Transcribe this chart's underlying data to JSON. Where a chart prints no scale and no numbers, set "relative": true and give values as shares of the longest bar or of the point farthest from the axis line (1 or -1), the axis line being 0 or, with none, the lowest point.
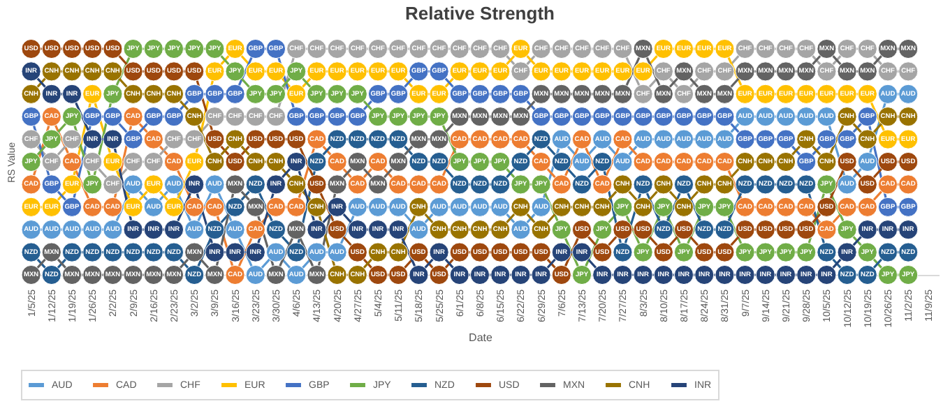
{
  "chart_data": {
    "type": "line",
    "title": "Relative Strength",
    "xlabel": "Date",
    "ylabel": "RS Value",
    "relative": true,
    "marker": "circle",
    "legend": "bottom",
    "grid": false,
    "categories": [
      "1/5/25",
      "1/12/25",
      "1/19/25",
      "1/26/25",
      "2/2/25",
      "2/9/25",
      "2/16/25",
      "2/23/25",
      "3/2/25",
      "3/9/25",
      "3/16/25",
      "3/23/25",
      "3/30/25",
      "4/6/25",
      "4/13/25",
      "4/20/25",
      "4/27/25",
      "5/4/25",
      "5/11/25",
      "5/18/25",
      "5/25/25",
      "6/1/25",
      "6/8/25",
      "6/15/25",
      "6/22/25",
      "6/29/25",
      "7/6/25",
      "7/13/25",
      "7/20/25",
      "7/27/25",
      "8/3/25",
      "8/10/25",
      "8/17/25",
      "8/24/25",
      "8/31/25",
      "9/7/25",
      "9/14/25",
      "9/21/25",
      "9/28/25",
      "10/5/25",
      "10/12/25",
      "10/19/25",
      "10/26/25",
      "11/2/25",
      "11/9/25"
    ],
    "series": [
      {
        "name": "AUD",
        "color": "#5b9bd5",
        "values": [
          0.2,
          0.2,
          0.2,
          0.2,
          0.2,
          0.4,
          0.3,
          0.4,
          0.2,
          0.4,
          0.2,
          0,
          0.1,
          0,
          0.1,
          0.1,
          0.3,
          0.3,
          0.3,
          0.2,
          0.3,
          0.3,
          0.3,
          0.3,
          0.2,
          0.3,
          0.6,
          0.5,
          0.6,
          0.5,
          0.6,
          0.6,
          0.6,
          0.6,
          0.6,
          0.7,
          0.7,
          0.7,
          0.7,
          0.7,
          0.4,
          0.5,
          0.8,
          0.8,
          null
        ]
      },
      {
        "name": "CAD",
        "color": "#ed7d31",
        "values": [
          0.4,
          0.7,
          0.5,
          0.3,
          0.3,
          0.7,
          0.6,
          0.5,
          0.3,
          0.3,
          0,
          0.2,
          0.3,
          0.3,
          0.6,
          0.5,
          0.4,
          0.5,
          0.4,
          0.4,
          0.4,
          0.6,
          0.6,
          0.6,
          0.6,
          0.5,
          0.4,
          0.6,
          0.4,
          0.6,
          0.5,
          0.5,
          0.5,
          0.5,
          0.5,
          0.3,
          0.3,
          0.3,
          0.3,
          0.2,
          0.3,
          0.3,
          0.4,
          0.4,
          null
        ]
      },
      {
        "name": "CHF",
        "color": "#a5a5a5",
        "values": [
          0.6,
          0.5,
          0.6,
          0.5,
          0.4,
          0.5,
          0.5,
          0.6,
          0.6,
          0.7,
          0.7,
          0.7,
          0.7,
          1,
          1,
          1,
          1,
          1,
          1,
          1,
          1,
          1,
          1,
          1,
          0.9,
          1,
          1,
          1,
          1,
          1,
          0.8,
          0.9,
          0.8,
          0.9,
          0.9,
          1,
          1,
          1,
          1,
          0.9,
          1,
          1,
          0.9,
          0.9,
          null
        ]
      },
      {
        "name": "EUR",
        "color": "#ffc000",
        "values": [
          0.3,
          0.3,
          0.4,
          0.8,
          0.5,
          0.3,
          0.4,
          0.3,
          0.5,
          0.9,
          1,
          0.9,
          0.9,
          0.8,
          0.9,
          0.9,
          0.9,
          0.9,
          0.9,
          0.8,
          0.8,
          0.9,
          0.9,
          0.9,
          1,
          0.9,
          0.9,
          0.9,
          0.9,
          0.9,
          0.9,
          1,
          1,
          1,
          1,
          0.8,
          0.8,
          0.8,
          0.8,
          0.8,
          0.8,
          0.8,
          0.6,
          0.6,
          null
        ]
      },
      {
        "name": "GBP",
        "color": "#4472c4",
        "values": [
          0.7,
          0.4,
          0.3,
          0.7,
          0.7,
          0.6,
          0.7,
          0.7,
          0.8,
          0.8,
          0.8,
          1,
          1,
          0.7,
          0.7,
          0.7,
          0.7,
          0.8,
          0.8,
          0.9,
          0.9,
          0.8,
          0.8,
          0.8,
          0.8,
          0.7,
          0.7,
          0.7,
          0.7,
          0.7,
          0.7,
          0.7,
          0.7,
          0.7,
          0.7,
          0.6,
          0.6,
          0.6,
          0.5,
          0.6,
          0.6,
          0.7,
          0.3,
          0.3,
          null
        ]
      },
      {
        "name": "JPY",
        "color": "#70ad47",
        "values": [
          0.5,
          0.6,
          0.7,
          0.4,
          0.8,
          1,
          1,
          1,
          1,
          1,
          0.9,
          0.8,
          0.8,
          0.9,
          0.8,
          0.8,
          0.8,
          0.7,
          0.7,
          0.7,
          0.7,
          0.5,
          0.5,
          0.5,
          0.4,
          0.4,
          0.2,
          0,
          0.2,
          0.3,
          0.1,
          0.3,
          0.1,
          0.3,
          0.3,
          0.1,
          0.1,
          0.1,
          0.1,
          0.4,
          0.2,
          0.1,
          0,
          0,
          null
        ]
      },
      {
        "name": "NZD",
        "color": "#255e91",
        "values": [
          0.1,
          0,
          0.1,
          0.1,
          0.1,
          0.1,
          0.1,
          0.1,
          0,
          0.2,
          0.3,
          0.4,
          0.2,
          0.1,
          0.5,
          0.6,
          0.6,
          0.6,
          0.6,
          0.5,
          0.5,
          0.4,
          0.4,
          0.4,
          0.5,
          0.6,
          0.5,
          0.4,
          0.5,
          0.1,
          0.4,
          0.2,
          0.4,
          0.2,
          0.2,
          0.4,
          0.4,
          0.4,
          0.4,
          0.1,
          0,
          0,
          0.1,
          0.1,
          null
        ]
      },
      {
        "name": "USD",
        "color": "#9e480e",
        "values": [
          1,
          1,
          1,
          1,
          1,
          0.9,
          0.9,
          0.9,
          0.9,
          0.6,
          0.5,
          0.6,
          0.6,
          0.6,
          0.4,
          0.2,
          0.1,
          0,
          0,
          0.1,
          0,
          0.1,
          0.1,
          0.1,
          0.1,
          0.1,
          0,
          0.2,
          0.1,
          0.2,
          0.2,
          0.1,
          0.2,
          0.1,
          0.1,
          0.2,
          0.2,
          0.2,
          0.2,
          0.3,
          0.5,
          0.4,
          0.5,
          0.5,
          null
        ]
      },
      {
        "name": "MXN",
        "color": "#636363",
        "values": [
          0,
          0.1,
          0,
          0,
          0,
          0,
          0,
          0,
          0.1,
          0,
          0.4,
          0.3,
          0,
          0.2,
          0,
          0.4,
          0.5,
          0.4,
          0.5,
          0.6,
          0.6,
          0.7,
          0.7,
          0.7,
          0.7,
          0.8,
          0.8,
          0.8,
          0.8,
          0.8,
          1,
          0.8,
          0.9,
          0.8,
          0.8,
          0.9,
          0.9,
          0.9,
          0.9,
          1,
          0.9,
          0.9,
          1,
          1,
          null
        ]
      },
      {
        "name": "CNH",
        "color": "#997300",
        "values": [
          0.8,
          0.9,
          0.9,
          0.9,
          0.9,
          0.8,
          0.8,
          0.8,
          0.7,
          0.5,
          0.6,
          0.5,
          0.5,
          0.4,
          0.3,
          0,
          0,
          0.1,
          0.1,
          0.3,
          0.2,
          0.2,
          0.2,
          0.2,
          0.3,
          0.2,
          0.3,
          0.3,
          0.3,
          0.4,
          0.3,
          0.4,
          0.3,
          0.4,
          0.4,
          0.5,
          0.5,
          0.5,
          0.6,
          0.5,
          0.7,
          0.6,
          0.7,
          0.7,
          null
        ]
      },
      {
        "name": "INR",
        "color": "#264478",
        "values": [
          0.9,
          0.8,
          0.8,
          0.6,
          0.6,
          0.2,
          0.2,
          0.2,
          0.4,
          0.1,
          0.1,
          0.1,
          0.4,
          0.5,
          0.2,
          0.3,
          0.2,
          0.2,
          0.2,
          0,
          0.1,
          0,
          0,
          0,
          0,
          0,
          0.1,
          0.1,
          0,
          0,
          0,
          0,
          0,
          0,
          0,
          0,
          0,
          0,
          0,
          0,
          0.1,
          0.2,
          0.2,
          0.2,
          null
        ]
      }
    ]
  }
}
